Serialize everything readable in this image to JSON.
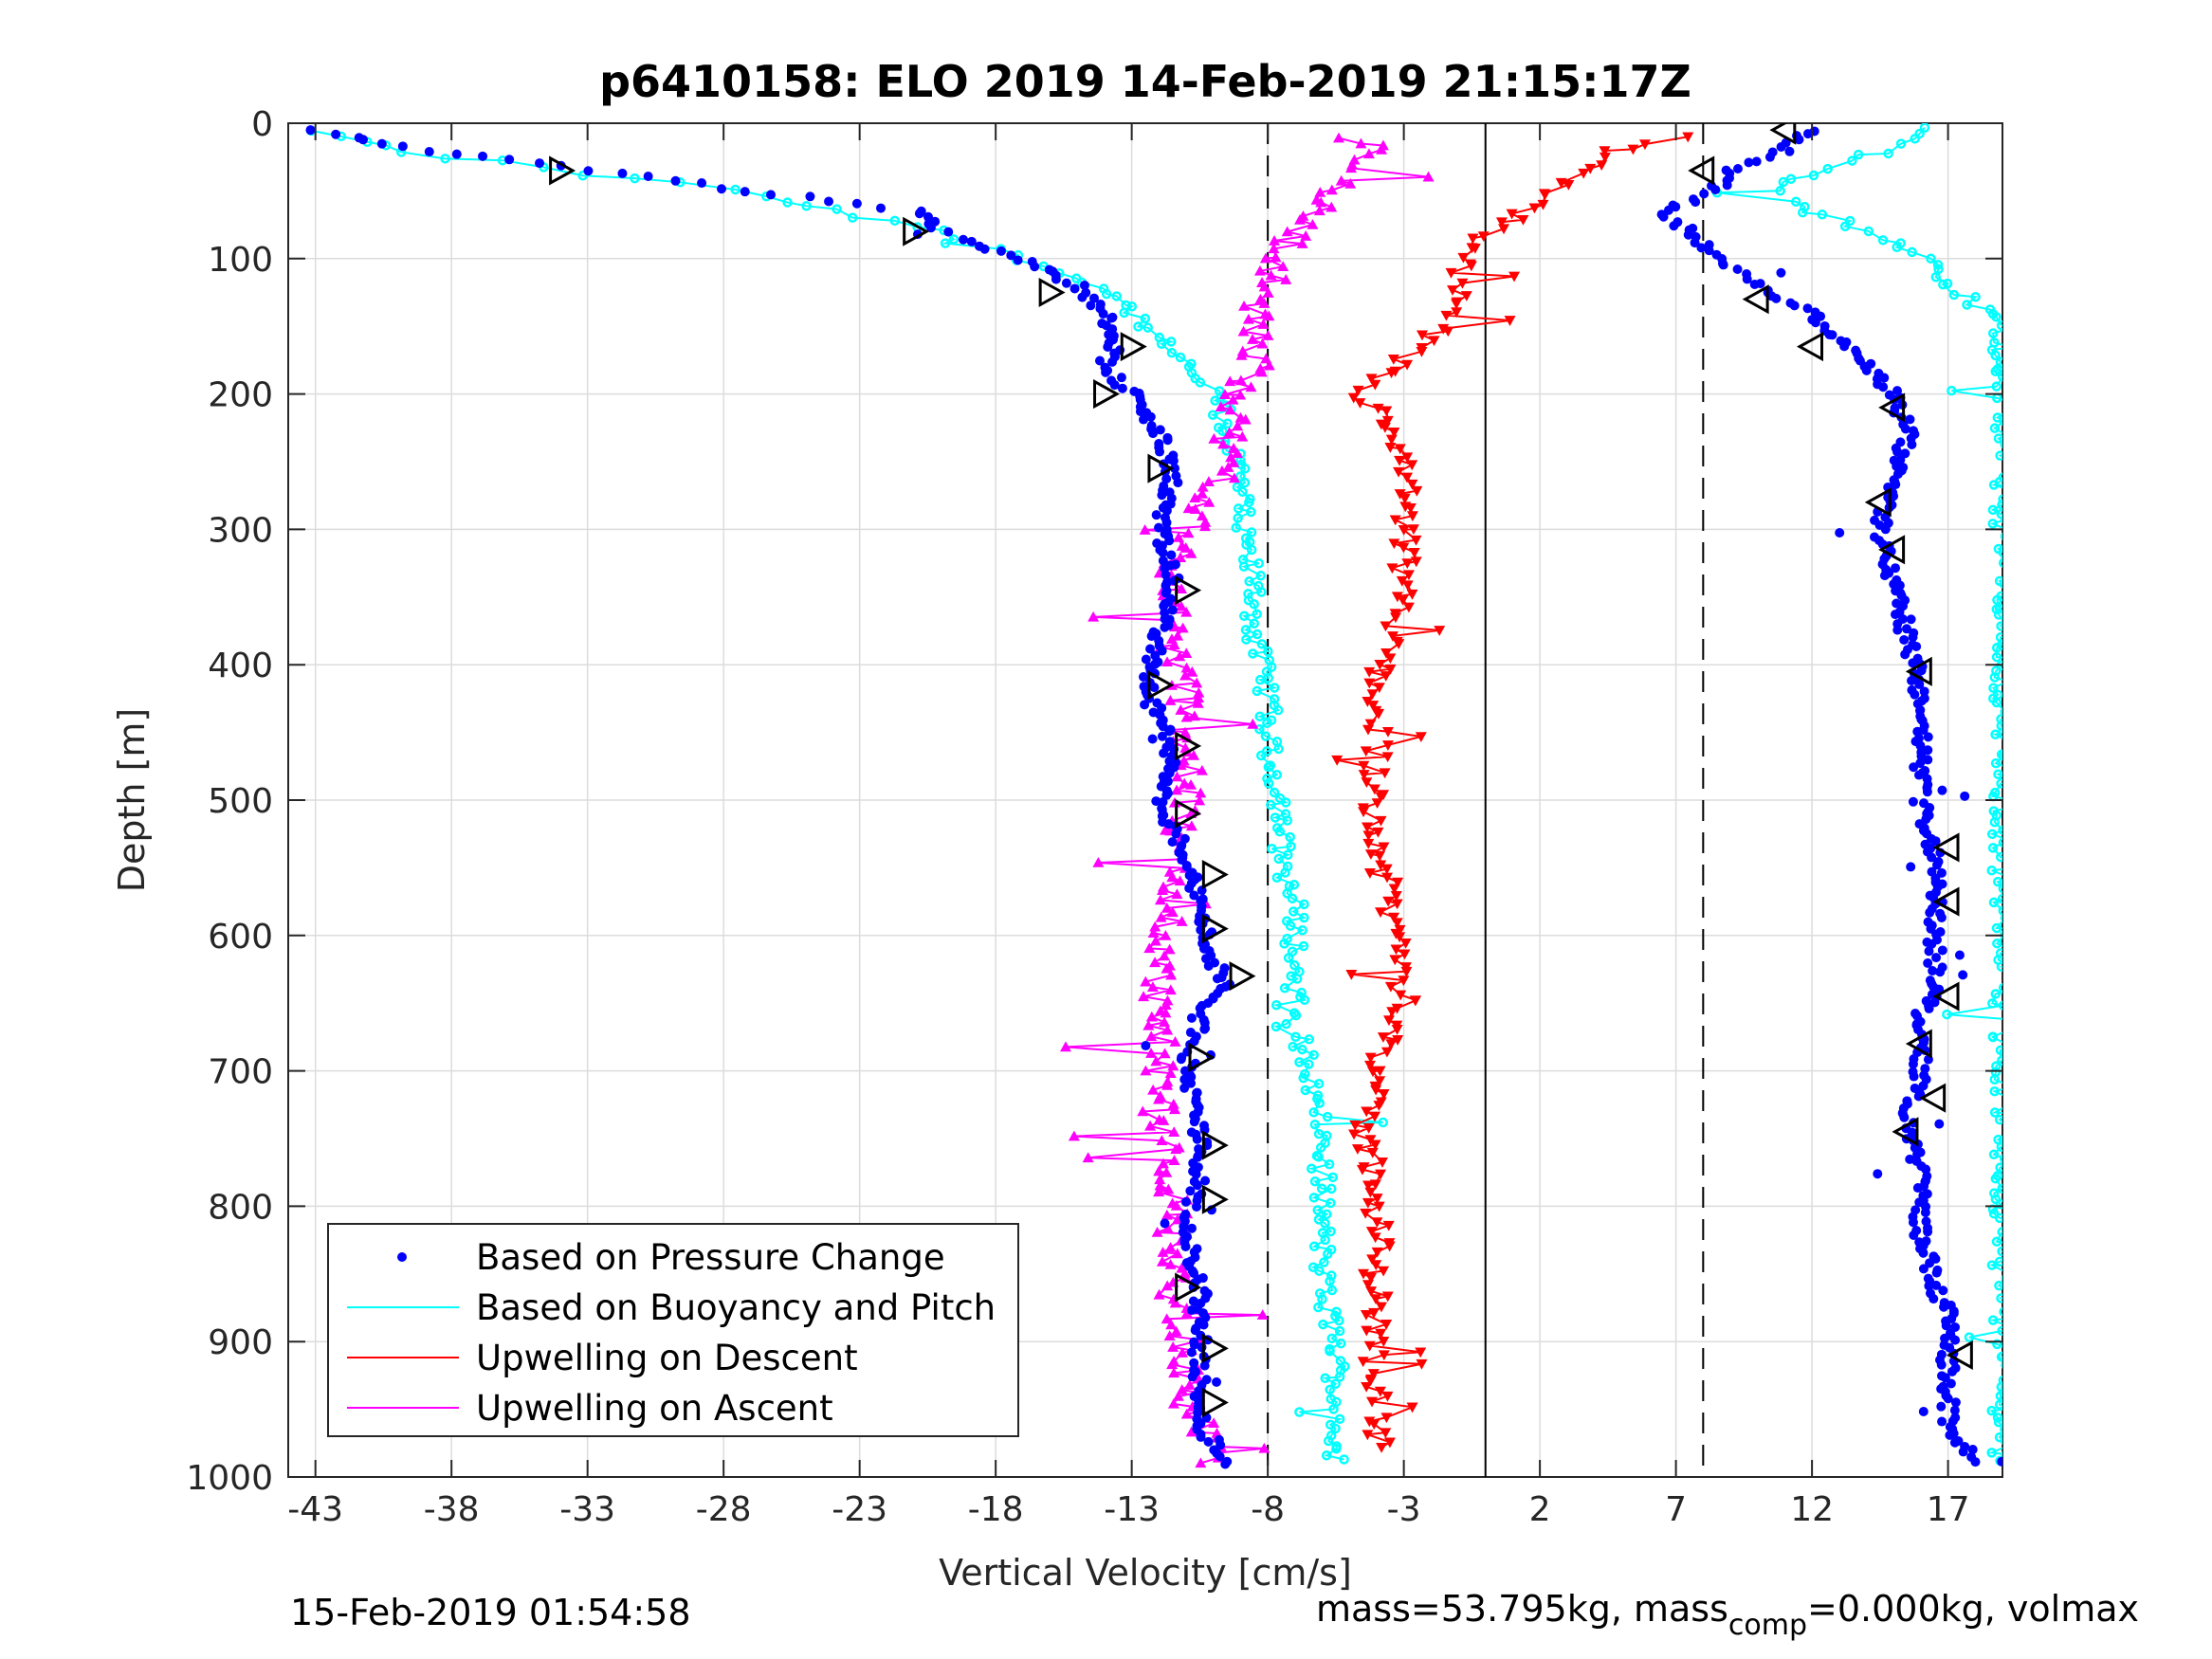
{
  "chart_data": {
    "type": "scatter",
    "title": "p6410158: ELO 2019 14-Feb-2019 21:15:17Z",
    "xlabel": "Vertical Velocity [cm/s]",
    "ylabel": "Depth [m]",
    "xlim": [
      -44,
      19
    ],
    "ylim": [
      0,
      1000
    ],
    "y_reversed": true,
    "grid": true,
    "x_ticks": [
      -43,
      -38,
      -33,
      -28,
      -23,
      -18,
      -13,
      -8,
      -3,
      2,
      7,
      12,
      17
    ],
    "x_tick_labels": [
      "-43",
      "-38",
      "-33",
      "-28",
      "-23",
      "-18",
      "-13",
      "-8",
      "-3",
      "2",
      "7",
      "12",
      "17"
    ],
    "y_ticks": [
      0,
      100,
      200,
      300,
      400,
      500,
      600,
      700,
      800,
      900,
      1000
    ],
    "y_tick_labels": [
      "0",
      "100",
      "200",
      "300",
      "400",
      "500",
      "600",
      "700",
      "800",
      "900",
      "1000"
    ],
    "reference_lines": [
      {
        "x": -8,
        "style": "dashed"
      },
      {
        "x": 0,
        "style": "solid"
      },
      {
        "x": 8,
        "style": "dashed"
      }
    ],
    "legend_position": "bottom-left",
    "legend": [
      {
        "label": "Based on Pressure Change",
        "color": "#0000ff",
        "marker": "dot"
      },
      {
        "label": "Based on Buoyancy and Pitch",
        "color": "#00ffff",
        "marker": "line"
      },
      {
        "label": "Upwelling on Descent",
        "color": "#ff0000",
        "marker": "line"
      },
      {
        "label": "Upwelling on Ascent",
        "color": "#ff00ff",
        "marker": "line"
      }
    ],
    "series": [
      {
        "color": "#0000ff",
        "marker": "dot",
        "depth": [
          5,
          20,
          35,
          50,
          65,
          80,
          100,
          120,
          140,
          160,
          180,
          200,
          230,
          260,
          300,
          340,
          380,
          420,
          460,
          500,
          540,
          580,
          620,
          640,
          660,
          700,
          740,
          780,
          820,
          860,
          880,
          920,
          960,
          990
        ],
        "descent": [
          -43,
          -39,
          -33,
          -27,
          -21,
          -20,
          -17,
          -15,
          -14,
          -13.5,
          -14,
          -13,
          -12,
          -11.5,
          -12,
          -11.5,
          -12,
          -12.5,
          -11.5,
          -12,
          -11,
          -10.5,
          -10,
          -9.5,
          -10.5,
          -11,
          -10.5,
          -10.5,
          -11,
          -10.5,
          -10.5,
          -10.5,
          -10.5,
          -9.5
        ],
        "ascent": [
          12,
          11,
          9,
          8.5,
          6.5,
          7.5,
          8.5,
          10,
          12,
          13,
          14,
          15,
          15.5,
          15,
          14.5,
          15,
          15.5,
          16,
          16,
          16,
          16.5,
          16.5,
          16.5,
          16.5,
          16,
          16,
          15.5,
          16,
          16,
          16.5,
          17,
          17,
          17,
          18
        ]
      },
      {
        "color": "#00ffff",
        "marker": "circle-line",
        "depth": [
          5,
          20,
          35,
          50,
          65,
          80,
          100,
          120,
          140,
          160,
          180,
          200,
          230,
          260,
          300,
          340,
          380,
          420,
          460,
          500,
          540,
          580,
          620,
          660,
          700,
          740,
          780,
          820,
          860,
          900,
          940,
          990
        ],
        "descent": [
          -43,
          -40,
          -34,
          -27,
          -24,
          -20,
          -17,
          -14,
          -13,
          -12,
          -11,
          -10,
          -9.5,
          -9,
          -9,
          -8.5,
          -8.5,
          -8,
          -8,
          -7.5,
          -7.5,
          -7,
          -7,
          -7,
          -6.5,
          -6,
          -6,
          -6,
          -6,
          -5.5,
          -5.5,
          -5.5
        ],
        "ascent": [
          16,
          15,
          12,
          11,
          12,
          14,
          16,
          17,
          18.5,
          19,
          19,
          19,
          19,
          19,
          19,
          19,
          19,
          19,
          19,
          19,
          19,
          19,
          19,
          19,
          19,
          19,
          19,
          19,
          19,
          19,
          19,
          19
        ]
      },
      {
        "color": "#ff0000",
        "marker": "triangle-down-line",
        "depth": [
          10,
          20,
          40,
          60,
          80,
          100,
          120,
          140,
          160,
          180,
          200,
          230,
          260,
          300,
          340,
          380,
          420,
          460,
          500,
          540,
          580,
          620,
          660,
          700,
          740,
          780,
          820,
          860,
          900,
          940,
          980
        ],
        "values": [
          7,
          5,
          3,
          2,
          0,
          -1,
          -1,
          -1.5,
          -2,
          -3.5,
          -4.5,
          -3.5,
          -3,
          -3,
          -3,
          -3.5,
          -4,
          -4,
          -4,
          -4,
          -3.5,
          -3,
          -3,
          -4,
          -4.5,
          -4,
          -4,
          -4,
          -4,
          -4,
          -4
        ]
      },
      {
        "color": "#ff00ff",
        "marker": "triangle-up-line",
        "depth": [
          10,
          20,
          40,
          60,
          80,
          100,
          120,
          140,
          160,
          180,
          200,
          230,
          260,
          300,
          340,
          380,
          420,
          460,
          500,
          540,
          580,
          620,
          660,
          700,
          740,
          780,
          820,
          860,
          900,
          940,
          990
        ],
        "values": [
          -5,
          -4,
          -5,
          -6,
          -7,
          -7.5,
          -8,
          -8.5,
          -8.5,
          -8.5,
          -9,
          -9.5,
          -9.5,
          -11,
          -11.5,
          -11.5,
          -11,
          -11,
          -11,
          -11.5,
          -11.5,
          -12,
          -12,
          -12,
          -12,
          -11.5,
          -11.5,
          -11.5,
          -11,
          -11,
          -10
        ]
      }
    ],
    "markers": [
      {
        "series": "pressure-descent",
        "type": "triangle-right",
        "points": [
          [
            -34,
            35
          ],
          [
            -21,
            80
          ],
          [
            -16,
            125
          ],
          [
            -13,
            165
          ],
          [
            -14,
            200
          ],
          [
            -12,
            255
          ],
          [
            -11,
            345
          ],
          [
            -12,
            415
          ],
          [
            -11,
            460
          ],
          [
            -11,
            510
          ],
          [
            -10,
            555
          ],
          [
            -10,
            595
          ],
          [
            -9,
            630
          ],
          [
            -10.5,
            690
          ],
          [
            -10,
            755
          ],
          [
            -10,
            795
          ],
          [
            -11,
            860
          ],
          [
            -10,
            905
          ],
          [
            -10,
            945
          ]
        ]
      },
      {
        "series": "pressure-ascent",
        "type": "triangle-left",
        "points": [
          [
            11,
            5
          ],
          [
            8,
            35
          ],
          [
            10,
            130
          ],
          [
            12,
            165
          ],
          [
            15,
            210
          ],
          [
            14.5,
            280
          ],
          [
            15,
            315
          ],
          [
            16,
            405
          ],
          [
            17,
            535
          ],
          [
            17,
            575
          ],
          [
            17,
            645
          ],
          [
            16,
            680
          ],
          [
            16.5,
            720
          ],
          [
            15.5,
            745
          ],
          [
            17.5,
            910
          ]
        ]
      }
    ]
  },
  "footer": {
    "left": "15-Feb-2019 01:54:58",
    "right_main": "mass=53.795kg, mass",
    "right_sub": "comp",
    "right_tail": "=0.000kg, volmax"
  }
}
